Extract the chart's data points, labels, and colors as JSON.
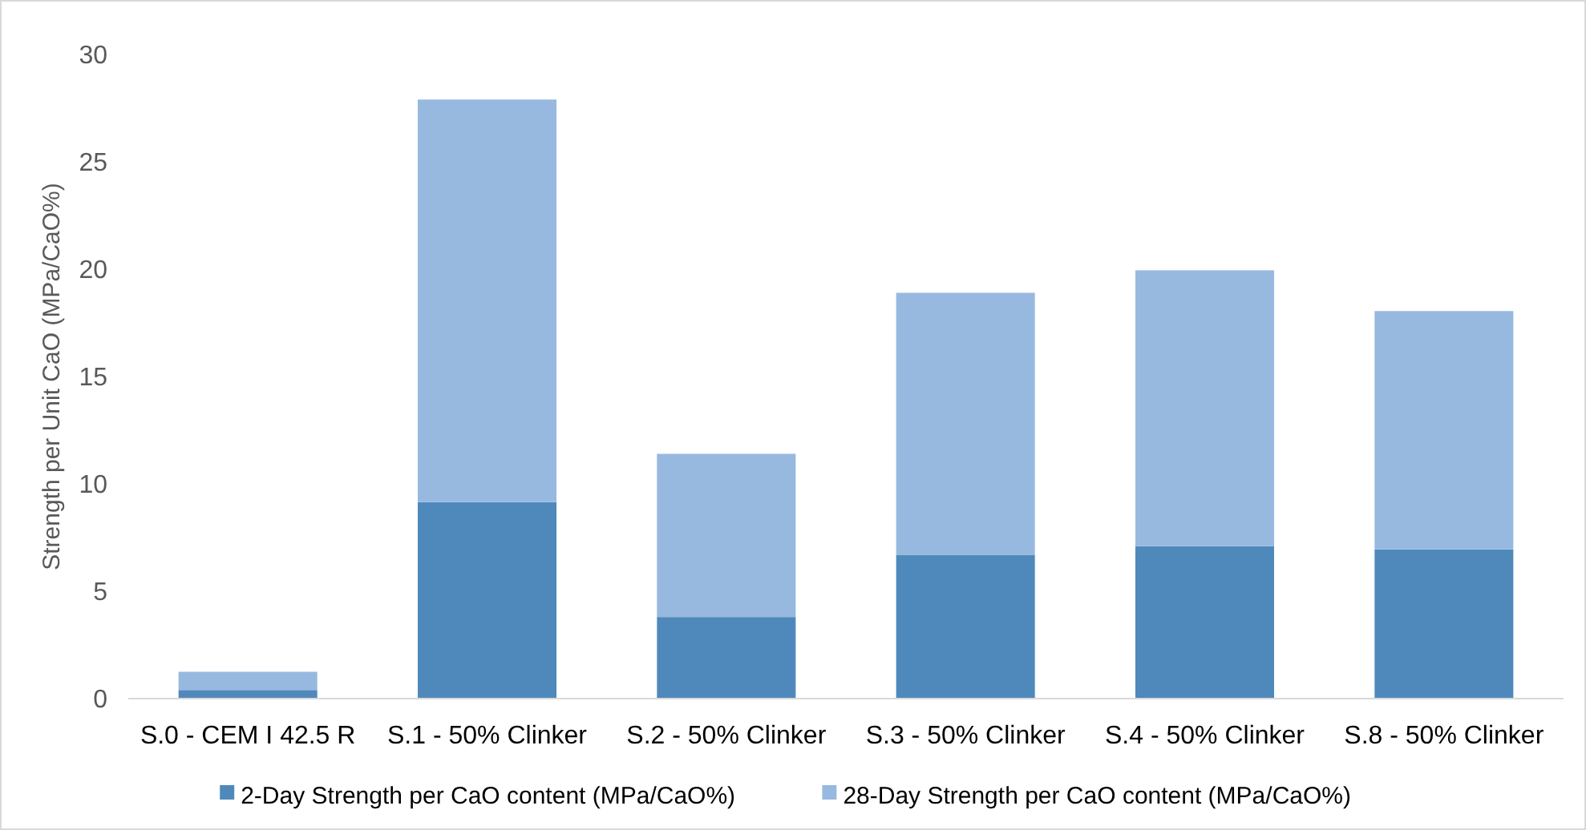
{
  "chart_data": {
    "type": "bar",
    "stacked": true,
    "ylabel": "Strength per Unit CaO (MPa/CaO%)",
    "categories": [
      "S.0 - CEM I 42.5 R",
      "S.1 - 50% Clinker",
      "S.2 - 50% Clinker",
      "S.3 - 50% Clinker",
      "S.4 - 50% Clinker",
      "S.8 - 50% Clinker"
    ],
    "series": [
      {
        "name": "2-Day Strength per CaO content (MPa/CaO%)",
        "color": "#4f89bc",
        "values": [
          0.4,
          9.15,
          3.8,
          6.7,
          7.1,
          6.95
        ]
      },
      {
        "name": "28-Day Strength per CaO content (MPa/CaO%)",
        "color": "#98b9df",
        "values": [
          0.85,
          18.75,
          7.6,
          12.2,
          12.85,
          11.1
        ]
      }
    ],
    "ylim": [
      0,
      30
    ],
    "yticks": [
      0,
      5,
      10,
      15,
      20,
      25,
      30
    ],
    "grid": false,
    "legend": "bottom"
  }
}
